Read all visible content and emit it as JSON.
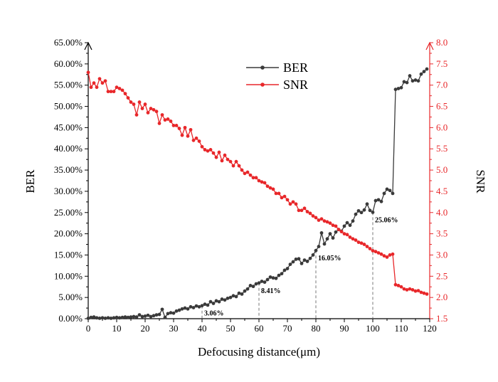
{
  "chart_data": {
    "type": "line",
    "xlabel": "Defocusing distance(μm)",
    "xlim": [
      0,
      120
    ],
    "xticks": [
      0,
      10,
      20,
      30,
      40,
      50,
      60,
      70,
      80,
      90,
      100,
      110,
      120
    ],
    "y_left": {
      "label": "BER",
      "lim": [
        0,
        65
      ],
      "ticks": [
        0,
        5,
        10,
        15,
        20,
        25,
        30,
        35,
        40,
        45,
        50,
        55,
        60,
        65
      ],
      "tick_format": "%",
      "color": "#000000"
    },
    "y_right": {
      "label": "SNR",
      "lim": [
        1.5,
        8.0
      ],
      "ticks": [
        1.5,
        2.0,
        2.5,
        3.0,
        3.5,
        4.0,
        4.5,
        5.0,
        5.5,
        6.0,
        6.5,
        7.0,
        7.5,
        8.0
      ],
      "color": "#e8272a"
    },
    "legend": {
      "position": "top-center"
    },
    "grid": false,
    "series": [
      {
        "name": "BER",
        "axis": "left",
        "color": "#3a3a3a",
        "marker": "circle",
        "points": [
          [
            0,
            0.1
          ],
          [
            1,
            0.3
          ],
          [
            2,
            0.4
          ],
          [
            3,
            0.2
          ],
          [
            4,
            0.1
          ],
          [
            5,
            0.2
          ],
          [
            6,
            0.1
          ],
          [
            7,
            0.2
          ],
          [
            8,
            0.1
          ],
          [
            9,
            0.2
          ],
          [
            10,
            0.3
          ],
          [
            11,
            0.2
          ],
          [
            12,
            0.3
          ],
          [
            13,
            0.4
          ],
          [
            14,
            0.3
          ],
          [
            15,
            0.4
          ],
          [
            16,
            0.5
          ],
          [
            17,
            0.4
          ],
          [
            18,
            0.9
          ],
          [
            19,
            0.5
          ],
          [
            20,
            0.6
          ],
          [
            21,
            0.8
          ],
          [
            22,
            0.5
          ],
          [
            23,
            0.7
          ],
          [
            24,
            0.9
          ],
          [
            25,
            1.0
          ],
          [
            26,
            2.2
          ],
          [
            27,
            0.3
          ],
          [
            28,
            1.2
          ],
          [
            29,
            1.4
          ],
          [
            30,
            1.3
          ],
          [
            31,
            1.8
          ],
          [
            32,
            2.0
          ],
          [
            33,
            2.3
          ],
          [
            34,
            2.5
          ],
          [
            35,
            2.3
          ],
          [
            36,
            2.8
          ],
          [
            37,
            2.6
          ],
          [
            38,
            3.0
          ],
          [
            39,
            2.8
          ],
          [
            40,
            3.06
          ],
          [
            41,
            3.4
          ],
          [
            42,
            3.2
          ],
          [
            43,
            4.0
          ],
          [
            44,
            3.6
          ],
          [
            45,
            4.2
          ],
          [
            46,
            4.0
          ],
          [
            47,
            4.6
          ],
          [
            48,
            4.4
          ],
          [
            49,
            4.8
          ],
          [
            50,
            5.0
          ],
          [
            51,
            5.4
          ],
          [
            52,
            5.2
          ],
          [
            53,
            6.0
          ],
          [
            54,
            5.8
          ],
          [
            55,
            6.5
          ],
          [
            56,
            7.0
          ],
          [
            57,
            7.8
          ],
          [
            58,
            7.6
          ],
          [
            59,
            8.2
          ],
          [
            60,
            8.41
          ],
          [
            61,
            8.8
          ],
          [
            62,
            8.6
          ],
          [
            63,
            9.2
          ],
          [
            64,
            9.8
          ],
          [
            65,
            9.6
          ],
          [
            66,
            9.5
          ],
          [
            67,
            10.2
          ],
          [
            68,
            10.6
          ],
          [
            69,
            11.4
          ],
          [
            70,
            11.8
          ],
          [
            71,
            12.8
          ],
          [
            72,
            13.4
          ],
          [
            73,
            14.0
          ],
          [
            74,
            14.1
          ],
          [
            75,
            13.0
          ],
          [
            76,
            13.8
          ],
          [
            77,
            13.5
          ],
          [
            78,
            14.2
          ],
          [
            79,
            15.0
          ],
          [
            80,
            16.05
          ],
          [
            81,
            17.0
          ],
          [
            82,
            20.2
          ],
          [
            83,
            17.6
          ],
          [
            84,
            18.8
          ],
          [
            85,
            20.0
          ],
          [
            86,
            19.0
          ],
          [
            87,
            20.4
          ],
          [
            88,
            21.0
          ],
          [
            89,
            20.6
          ],
          [
            90,
            21.8
          ],
          [
            91,
            22.6
          ],
          [
            92,
            22.0
          ],
          [
            93,
            23.0
          ],
          [
            94,
            24.6
          ],
          [
            95,
            25.4
          ],
          [
            96,
            25.0
          ],
          [
            97,
            25.6
          ],
          [
            98,
            27.0
          ],
          [
            99,
            25.5
          ],
          [
            100,
            25.06
          ],
          [
            101,
            27.8
          ],
          [
            102,
            28.0
          ],
          [
            103,
            27.6
          ],
          [
            104,
            29.5
          ],
          [
            105,
            30.5
          ],
          [
            106,
            30.2
          ],
          [
            107,
            29.5
          ],
          [
            108,
            54.0
          ],
          [
            109,
            54.2
          ],
          [
            110,
            54.4
          ],
          [
            111,
            55.8
          ],
          [
            112,
            55.6
          ],
          [
            113,
            57.2
          ],
          [
            114,
            56.0
          ],
          [
            115,
            56.2
          ],
          [
            116,
            56.0
          ],
          [
            117,
            57.6
          ],
          [
            118,
            58.2
          ],
          [
            119,
            58.8
          ]
        ]
      },
      {
        "name": "SNR",
        "axis": "right",
        "color": "#e8272a",
        "marker": "circle",
        "points": [
          [
            0,
            7.3
          ],
          [
            1,
            6.95
          ],
          [
            2,
            7.05
          ],
          [
            3,
            6.95
          ],
          [
            4,
            7.15
          ],
          [
            5,
            7.05
          ],
          [
            6,
            7.1
          ],
          [
            7,
            6.85
          ],
          [
            8,
            6.85
          ],
          [
            9,
            6.85
          ],
          [
            10,
            6.95
          ],
          [
            11,
            6.92
          ],
          [
            12,
            6.88
          ],
          [
            13,
            6.8
          ],
          [
            14,
            6.7
          ],
          [
            15,
            6.6
          ],
          [
            16,
            6.55
          ],
          [
            17,
            6.3
          ],
          [
            18,
            6.6
          ],
          [
            19,
            6.45
          ],
          [
            20,
            6.55
          ],
          [
            21,
            6.35
          ],
          [
            22,
            6.45
          ],
          [
            23,
            6.42
          ],
          [
            24,
            6.38
          ],
          [
            25,
            6.1
          ],
          [
            26,
            6.3
          ],
          [
            27,
            6.18
          ],
          [
            28,
            6.2
          ],
          [
            29,
            6.15
          ],
          [
            30,
            6.05
          ],
          [
            31,
            6.05
          ],
          [
            32,
            5.98
          ],
          [
            33,
            5.82
          ],
          [
            34,
            6.0
          ],
          [
            35,
            5.8
          ],
          [
            36,
            5.95
          ],
          [
            37,
            5.7
          ],
          [
            38,
            5.75
          ],
          [
            39,
            5.68
          ],
          [
            40,
            5.55
          ],
          [
            41,
            5.48
          ],
          [
            42,
            5.45
          ],
          [
            43,
            5.48
          ],
          [
            44,
            5.4
          ],
          [
            45,
            5.3
          ],
          [
            46,
            5.42
          ],
          [
            47,
            5.22
          ],
          [
            48,
            5.35
          ],
          [
            49,
            5.25
          ],
          [
            50,
            5.2
          ],
          [
            51,
            5.1
          ],
          [
            52,
            5.2
          ],
          [
            53,
            5.1
          ],
          [
            54,
            5.0
          ],
          [
            55,
            4.92
          ],
          [
            56,
            4.95
          ],
          [
            57,
            4.88
          ],
          [
            58,
            4.82
          ],
          [
            59,
            4.82
          ],
          [
            60,
            4.75
          ],
          [
            61,
            4.72
          ],
          [
            62,
            4.7
          ],
          [
            63,
            4.62
          ],
          [
            64,
            4.58
          ],
          [
            65,
            4.55
          ],
          [
            66,
            4.45
          ],
          [
            67,
            4.45
          ],
          [
            68,
            4.35
          ],
          [
            69,
            4.38
          ],
          [
            70,
            4.3
          ],
          [
            71,
            4.2
          ],
          [
            72,
            4.25
          ],
          [
            73,
            4.2
          ],
          [
            74,
            4.05
          ],
          [
            75,
            4.05
          ],
          [
            76,
            4.1
          ],
          [
            77,
            4.02
          ],
          [
            78,
            3.98
          ],
          [
            79,
            3.92
          ],
          [
            80,
            3.88
          ],
          [
            81,
            3.82
          ],
          [
            82,
            3.85
          ],
          [
            83,
            3.8
          ],
          [
            84,
            3.78
          ],
          [
            85,
            3.75
          ],
          [
            86,
            3.7
          ],
          [
            87,
            3.68
          ],
          [
            88,
            3.6
          ],
          [
            89,
            3.55
          ],
          [
            90,
            3.5
          ],
          [
            91,
            3.48
          ],
          [
            92,
            3.42
          ],
          [
            93,
            3.38
          ],
          [
            94,
            3.35
          ],
          [
            95,
            3.3
          ],
          [
            96,
            3.28
          ],
          [
            97,
            3.25
          ],
          [
            98,
            3.2
          ],
          [
            99,
            3.15
          ],
          [
            100,
            3.1
          ],
          [
            101,
            3.08
          ],
          [
            102,
            3.05
          ],
          [
            103,
            3.02
          ],
          [
            104,
            2.98
          ],
          [
            105,
            2.95
          ],
          [
            106,
            3.0
          ],
          [
            107,
            3.02
          ],
          [
            108,
            2.3
          ],
          [
            109,
            2.28
          ],
          [
            110,
            2.25
          ],
          [
            111,
            2.2
          ],
          [
            112,
            2.18
          ],
          [
            113,
            2.2
          ],
          [
            114,
            2.18
          ],
          [
            115,
            2.15
          ],
          [
            116,
            2.16
          ],
          [
            117,
            2.12
          ],
          [
            118,
            2.1
          ],
          [
            119,
            2.08
          ]
        ]
      }
    ],
    "annotations": [
      {
        "x": 40,
        "y": 3.06,
        "text": "3.06%"
      },
      {
        "x": 60,
        "y": 8.41,
        "text": "8.41%"
      },
      {
        "x": 80,
        "y": 16.05,
        "text": "16.05%"
      },
      {
        "x": 100,
        "y": 25.06,
        "text": "25.06%"
      }
    ]
  }
}
